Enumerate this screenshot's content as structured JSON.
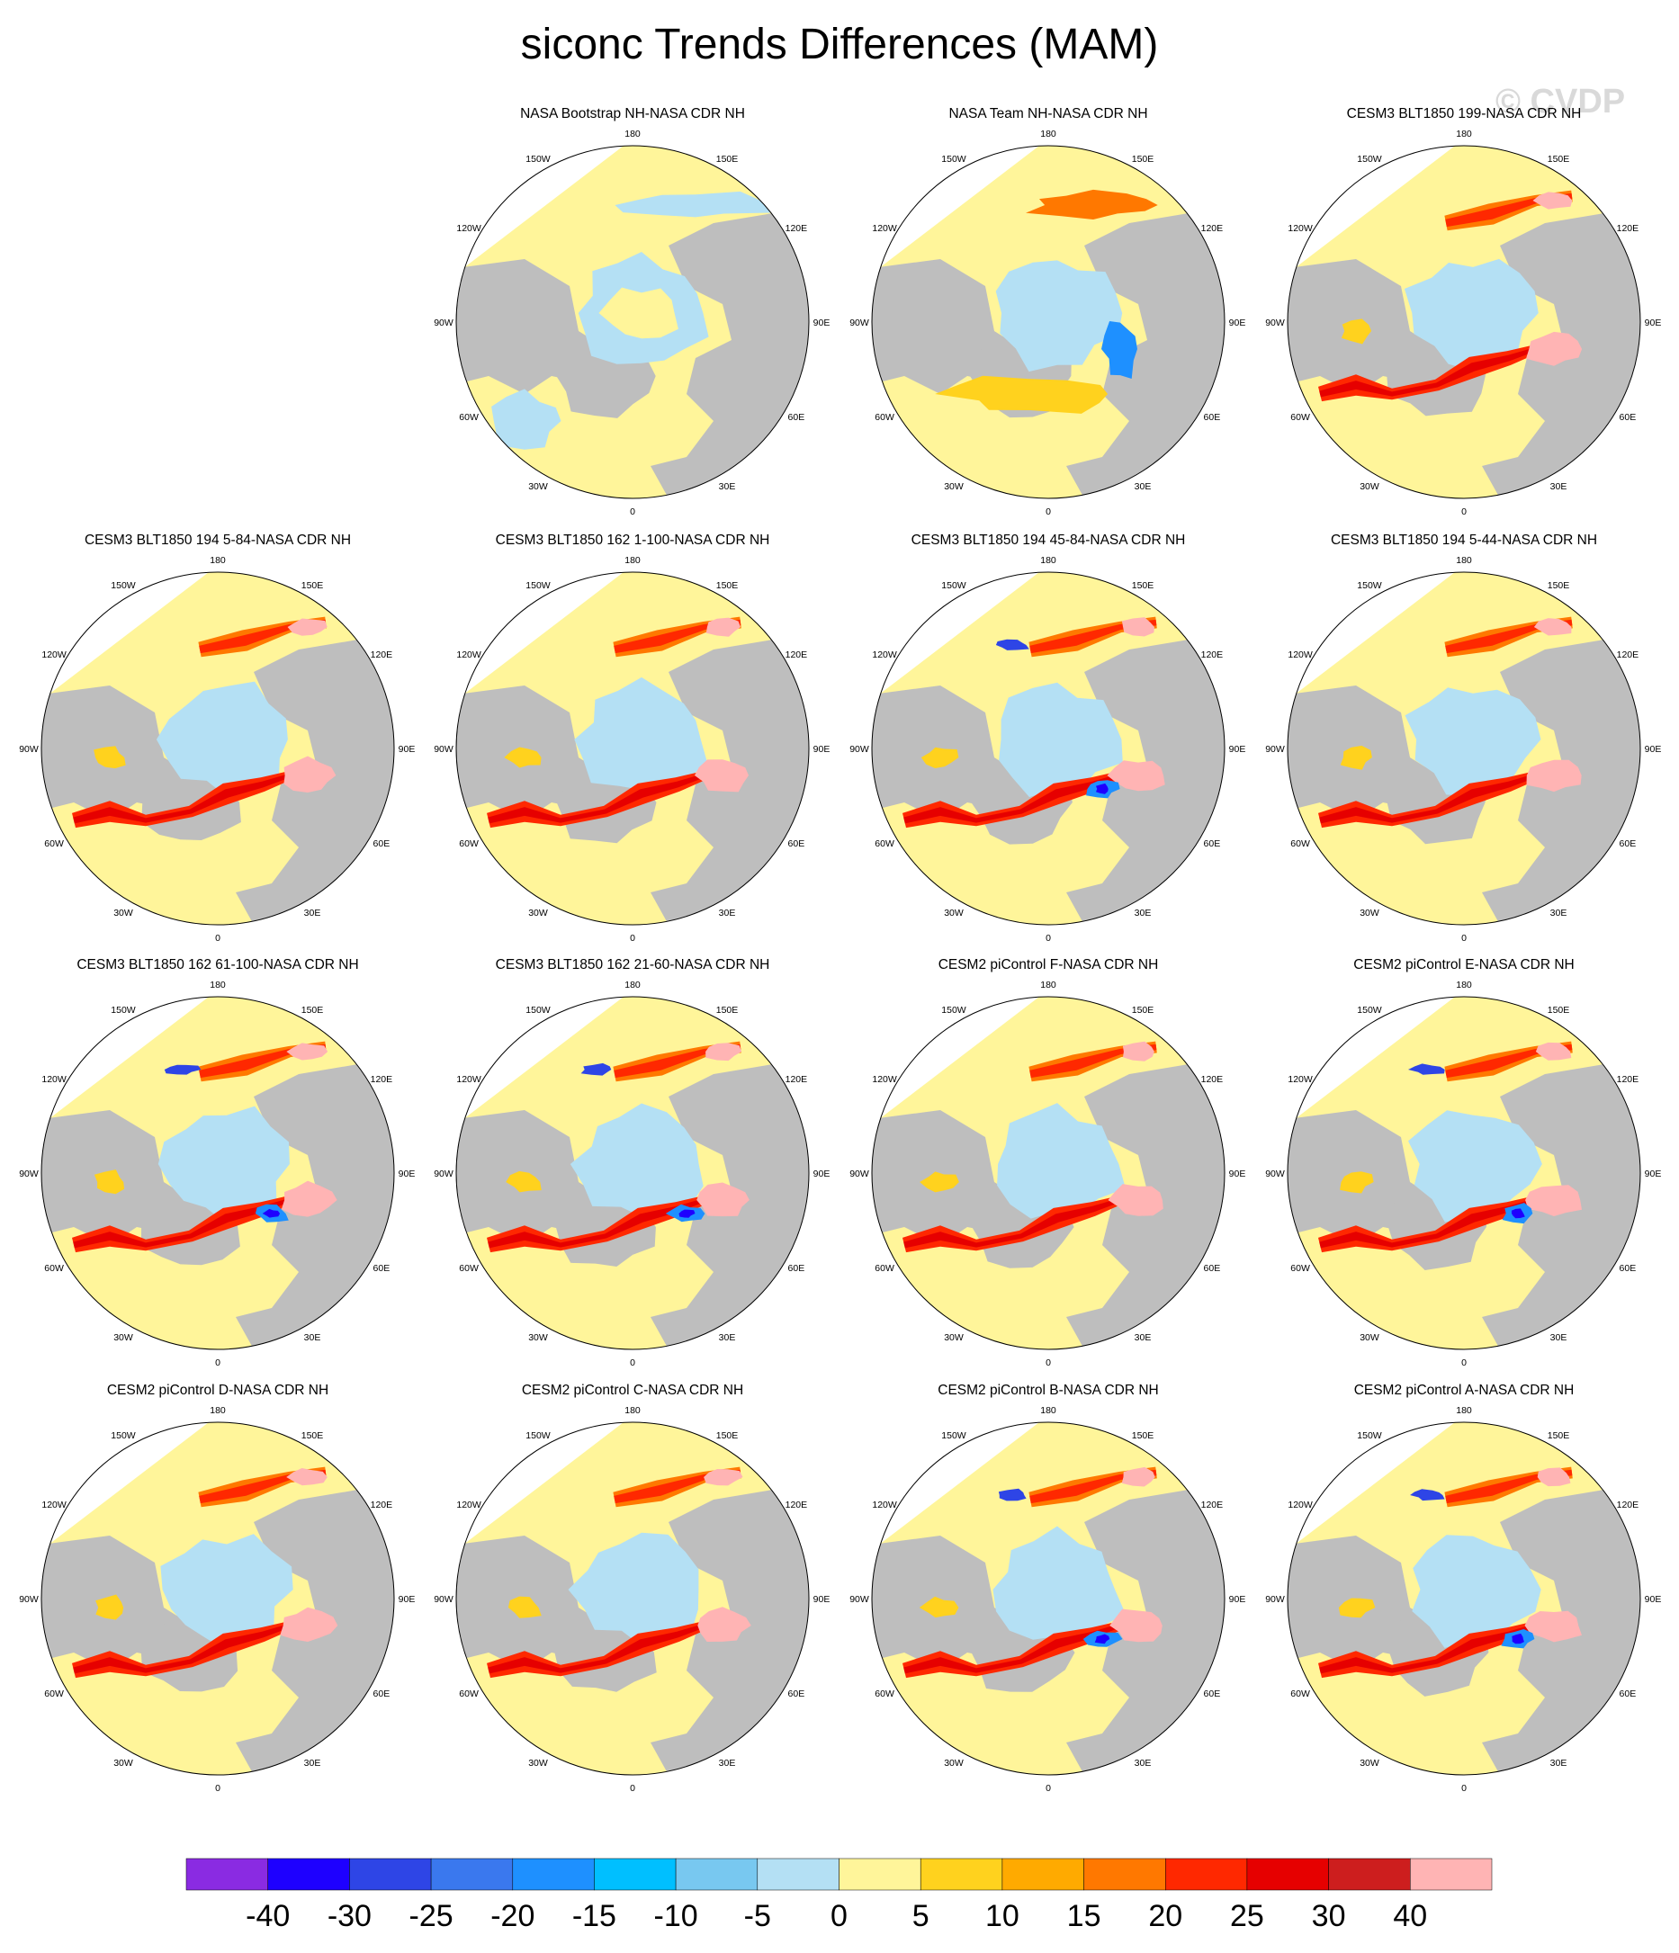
{
  "title": "siconc Trends Differences (MAM)",
  "watermark": "© CVDP",
  "lon_labels": [
    "180",
    "150E",
    "120E",
    "90E",
    "60E",
    "30E",
    "0",
    "30W",
    "60W",
    "90W",
    "120W",
    "150W"
  ],
  "panels": [
    {
      "title": "NASA Bootstrap NH-NASA CDR NH",
      "style": "obs"
    },
    {
      "title": "NASA Team NH-NASA CDR NH",
      "style": "obs2"
    },
    {
      "title": "CESM3 BLT1850 199-NASA CDR NH",
      "style": "model"
    },
    {
      "title": "CESM3 BLT1850 194 5-84-NASA CDR NH",
      "style": "model"
    },
    {
      "title": "CESM3 BLT1850 162 1-100-NASA CDR NH",
      "style": "model"
    },
    {
      "title": "CESM3 BLT1850 194 45-84-NASA CDR NH",
      "style": "model_blue"
    },
    {
      "title": "CESM3 BLT1850 194 5-44-NASA CDR NH",
      "style": "model"
    },
    {
      "title": "CESM3 BLT1850 162 61-100-NASA CDR NH",
      "style": "model_blue"
    },
    {
      "title": "CESM3 BLT1850 162 21-60-NASA CDR NH",
      "style": "model_blue"
    },
    {
      "title": "CESM2 piControl F-NASA CDR NH",
      "style": "model"
    },
    {
      "title": "CESM2 piControl E-NASA CDR NH",
      "style": "model_blue"
    },
    {
      "title": "CESM2 piControl D-NASA CDR NH",
      "style": "model"
    },
    {
      "title": "CESM2 piControl C-NASA CDR NH",
      "style": "model"
    },
    {
      "title": "CESM2 piControl B-NASA CDR NH",
      "style": "model_blue"
    },
    {
      "title": "CESM2 piControl A-NASA CDR NH",
      "style": "model_blue"
    }
  ],
  "colorbar": {
    "labels": [
      "-40",
      "-30",
      "-25",
      "-20",
      "-15",
      "-10",
      "-5",
      "0",
      "5",
      "10",
      "15",
      "20",
      "25",
      "30",
      "40"
    ],
    "colors": [
      "#8a2be2",
      "#1e00ff",
      "#2e45e6",
      "#3a78ee",
      "#1e90ff",
      "#00bfff",
      "#78c8f0",
      "#b4e0f4",
      "#fff59a",
      "#ffd21e",
      "#ffaa00",
      "#ff7800",
      "#ff2800",
      "#e60000",
      "#cd1e1e",
      "#ffb4b4"
    ]
  },
  "chart_data": {
    "type": "heatmap",
    "title": "siconc Trends Differences (MAM)",
    "projection": "north polar stereographic",
    "panel_count": 15,
    "layout": "4 rows x 4 columns, first cell empty",
    "colorbar_levels": [
      -40,
      -30,
      -25,
      -20,
      -15,
      -10,
      -5,
      0,
      5,
      10,
      15,
      20,
      25,
      30,
      40
    ],
    "colorbar_colors": [
      "#8a2be2",
      "#1e00ff",
      "#2e45e6",
      "#3a78ee",
      "#1e90ff",
      "#00bfff",
      "#78c8f0",
      "#b4e0f4",
      "#fff59a",
      "#ffd21e",
      "#ffaa00",
      "#ff7800",
      "#ff2800",
      "#e60000",
      "#cd1e1e",
      "#ffb4b4"
    ],
    "land_color": "#bebebe",
    "missing_color": "#ffffff"
  }
}
